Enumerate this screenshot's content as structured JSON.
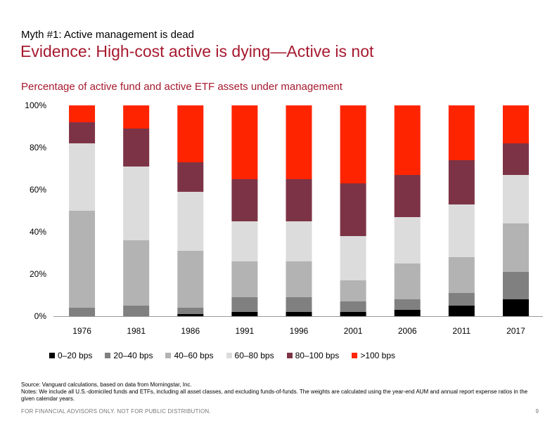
{
  "header": {
    "kicker": "Myth #1: Active management is dead",
    "headline": "Evidence: High-cost active is dying—Active is not"
  },
  "chart_data": {
    "type": "bar",
    "stacked": true,
    "title": "Percentage of active fund and active ETF assets under management",
    "categories": [
      "1976",
      "1981",
      "1986",
      "1991",
      "1996",
      "2001",
      "2006",
      "2011",
      "2017"
    ],
    "y_ticks": [
      "0%",
      "20%",
      "40%",
      "60%",
      "80%",
      "100%"
    ],
    "ylim": [
      0,
      100
    ],
    "grid": false,
    "legend_position": "bottom",
    "series": [
      {
        "name": "0–20 bps",
        "color": "#000000",
        "values": [
          0,
          0,
          1,
          2,
          2,
          2,
          3,
          5,
          8
        ]
      },
      {
        "name": "20–40 bps",
        "color": "#808080",
        "values": [
          4,
          5,
          3,
          7,
          7,
          5,
          5,
          6,
          13
        ]
      },
      {
        "name": "40–60 bps",
        "color": "#b3b3b3",
        "values": [
          46,
          31,
          27,
          17,
          17,
          10,
          17,
          17,
          23
        ]
      },
      {
        "name": "60–80 bps",
        "color": "#dcdcdc",
        "values": [
          32,
          35,
          28,
          19,
          19,
          21,
          22,
          25,
          23
        ]
      },
      {
        "name": "80–100 bps",
        "color": "#7d3346",
        "values": [
          10,
          18,
          14,
          20,
          20,
          25,
          20,
          21,
          15
        ]
      },
      {
        "name": ">100 bps",
        "color": "#ff2400",
        "values": [
          8,
          11,
          27,
          35,
          35,
          37,
          33,
          26,
          18
        ]
      }
    ]
  },
  "notes": {
    "source": "Source: Vanguard calculations, based on data from Morningstar, Inc.",
    "detail": "Notes: We include all U.S.-domiciled funds and ETFs, including all asset classes, and excluding funds-of-funds.  The weights are calculated using the year-end AUM and annual report expense ratios in the given calendar years."
  },
  "footer": {
    "disclaimer": "FOR FINANCIAL ADVISORS ONLY. NOT FOR PUBLIC DISTRIBUTION.",
    "page_number": "9"
  }
}
